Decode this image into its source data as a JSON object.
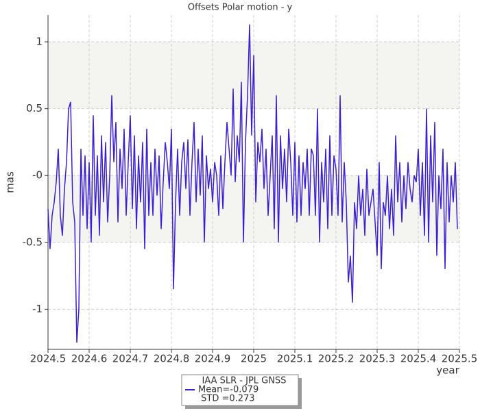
{
  "chart_data": {
    "type": "line",
    "title": "Offsets Polar motion - y",
    "xlabel": "year",
    "ylabel": "mas",
    "x": [
      2024.5,
      2024.505,
      2024.51,
      2024.515,
      2024.52,
      2024.525,
      2024.53,
      2024.535,
      2024.54,
      2024.545,
      2024.55,
      2024.555,
      2024.56,
      2024.565,
      2024.57,
      2024.575,
      2024.58,
      2024.585,
      2024.59,
      2024.595,
      2024.6,
      2024.605,
      2024.61,
      2024.615,
      2024.62,
      2024.625,
      2024.63,
      2024.635,
      2024.64,
      2024.645,
      2024.65,
      2024.655,
      2024.66,
      2024.665,
      2024.67,
      2024.675,
      2024.68,
      2024.685,
      2024.69,
      2024.695,
      2024.7,
      2024.705,
      2024.71,
      2024.715,
      2024.72,
      2024.725,
      2024.73,
      2024.735,
      2024.74,
      2024.745,
      2024.75,
      2024.755,
      2024.76,
      2024.765,
      2024.77,
      2024.775,
      2024.78,
      2024.785,
      2024.79,
      2024.795,
      2024.8,
      2024.805,
      2024.81,
      2024.815,
      2024.82,
      2024.825,
      2024.83,
      2024.835,
      2024.84,
      2024.845,
      2024.85,
      2024.855,
      2024.86,
      2024.865,
      2024.87,
      2024.875,
      2024.88,
      2024.885,
      2024.89,
      2024.895,
      2024.9,
      2024.905,
      2024.91,
      2024.915,
      2024.92,
      2024.925,
      2024.93,
      2024.935,
      2024.94,
      2024.945,
      2024.95,
      2024.955,
      2024.96,
      2024.965,
      2024.97,
      2024.975,
      2024.98,
      2024.985,
      2024.99,
      2024.995,
      2025.0,
      2025.005,
      2025.01,
      2025.015,
      2025.02,
      2025.025,
      2025.03,
      2025.035,
      2025.04,
      2025.045,
      2025.05,
      2025.055,
      2025.06,
      2025.065,
      2025.07,
      2025.075,
      2025.08,
      2025.085,
      2025.09,
      2025.095,
      2025.1,
      2025.105,
      2025.11,
      2025.115,
      2025.12,
      2025.125,
      2025.13,
      2025.135,
      2025.14,
      2025.145,
      2025.15,
      2025.155,
      2025.16,
      2025.165,
      2025.17,
      2025.175,
      2025.18,
      2025.185,
      2025.19,
      2025.195,
      2025.2,
      2025.205,
      2025.21,
      2025.215,
      2025.22,
      2025.225,
      2025.23,
      2025.235,
      2025.24,
      2025.245,
      2025.25,
      2025.255,
      2025.26,
      2025.265,
      2025.27,
      2025.275,
      2025.28,
      2025.285,
      2025.29,
      2025.295,
      2025.3,
      2025.305,
      2025.31,
      2025.315,
      2025.32,
      2025.325,
      2025.33,
      2025.335,
      2025.34,
      2025.345,
      2025.35,
      2025.355,
      2025.36,
      2025.365,
      2025.37,
      2025.375,
      2025.38,
      2025.385,
      2025.39,
      2025.395,
      2025.4,
      2025.405,
      2025.41,
      2025.415,
      2025.42,
      2025.425,
      2025.43,
      2025.435,
      2025.44,
      2025.445,
      2025.45,
      2025.455,
      2025.46,
      2025.465,
      2025.47,
      2025.475,
      2025.48,
      2025.485,
      2025.49,
      2025.495
    ],
    "series": [
      {
        "name": "IAA SLR - JPL GNSS",
        "color": "#3a1fd6",
        "values": [
          -0.25,
          -0.55,
          -0.3,
          -0.2,
          -0.05,
          0.2,
          -0.3,
          -0.45,
          -0.1,
          0.1,
          0.5,
          0.55,
          -0.2,
          -0.35,
          -1.25,
          -1.0,
          0.2,
          -0.3,
          0.15,
          -0.4,
          0.1,
          -0.5,
          0.45,
          -0.3,
          0.15,
          -0.45,
          0.3,
          -0.2,
          0.25,
          -0.35,
          0.0,
          0.6,
          0.1,
          0.4,
          -0.35,
          0.2,
          -0.1,
          0.35,
          -0.3,
          0.1,
          0.45,
          -0.25,
          0.3,
          -0.4,
          0.15,
          -0.2,
          0.25,
          -0.55,
          0.35,
          -0.3,
          0.1,
          -0.3,
          0.2,
          -0.15,
          0.15,
          -0.4,
          -0.05,
          0.25,
          0.1,
          -0.1,
          0.35,
          -0.85,
          -0.2,
          0.2,
          -0.3,
          0.1,
          0.25,
          -0.1,
          0.27,
          -0.3,
          0.1,
          0.4,
          -0.2,
          0.2,
          -0.15,
          0.3,
          -0.5,
          0.15,
          -0.1,
          0.05,
          -0.2,
          0.1,
          0.0,
          -0.3,
          0.15,
          -0.25,
          0.1,
          0.4,
          0.2,
          0.0,
          0.65,
          -0.05,
          0.3,
          0.1,
          0.7,
          -0.5,
          0.25,
          0.6,
          1.13,
          0.3,
          0.9,
          -0.2,
          0.25,
          0.1,
          0.35,
          -0.1,
          0.2,
          -0.3,
          0.0,
          0.3,
          -0.4,
          0.6,
          -0.5,
          0.3,
          -0.1,
          0.2,
          -0.2,
          0.35,
          0.1,
          -0.3,
          0.25,
          -0.35,
          0.15,
          -0.3,
          0.1,
          -0.1,
          0.2,
          -0.3,
          0.2,
          0.15,
          -0.3,
          0.5,
          -0.5,
          0.1,
          -0.2,
          0.2,
          -0.4,
          0.3,
          -0.3,
          0.15,
          0.05,
          -0.3,
          0.6,
          -0.35,
          0.1,
          -0.2,
          -0.8,
          -0.6,
          -0.95,
          -0.2,
          -0.4,
          0.0,
          -0.3,
          -0.1,
          -0.45,
          0.05,
          -0.3,
          -0.2,
          -0.1,
          -0.35,
          -0.6,
          0.1,
          -0.7,
          -0.2,
          -0.3,
          0.0,
          -0.4,
          -0.1,
          -0.45,
          0.3,
          -0.2,
          0.1,
          -0.35,
          0.0,
          -0.25,
          0.1,
          -0.1,
          -0.2,
          0.0,
          -0.05,
          0.2,
          -0.3,
          0.1,
          -0.45,
          0.5,
          -0.5,
          0.3,
          -0.2,
          0.4,
          -0.6,
          0.0,
          -0.25,
          0.2,
          -0.7,
          0.1,
          -0.35,
          0.0,
          -0.2,
          0.1,
          -0.4
        ]
      }
    ],
    "annotations": [
      "Mean=-0.079",
      " STD =0.273"
    ],
    "xlim": [
      2024.5,
      2025.5
    ],
    "xticks": [
      2024.5,
      2024.6,
      2024.7,
      2024.8,
      2024.9,
      2025,
      2025.1,
      2025.2,
      2025.3,
      2025.4,
      2025.5
    ],
    "ylim": [
      -1.3,
      1.2
    ],
    "yticks": [
      -1,
      -0.5,
      {
        "value": 0,
        "label": "-0"
      },
      0.5,
      1
    ],
    "grid": true
  }
}
